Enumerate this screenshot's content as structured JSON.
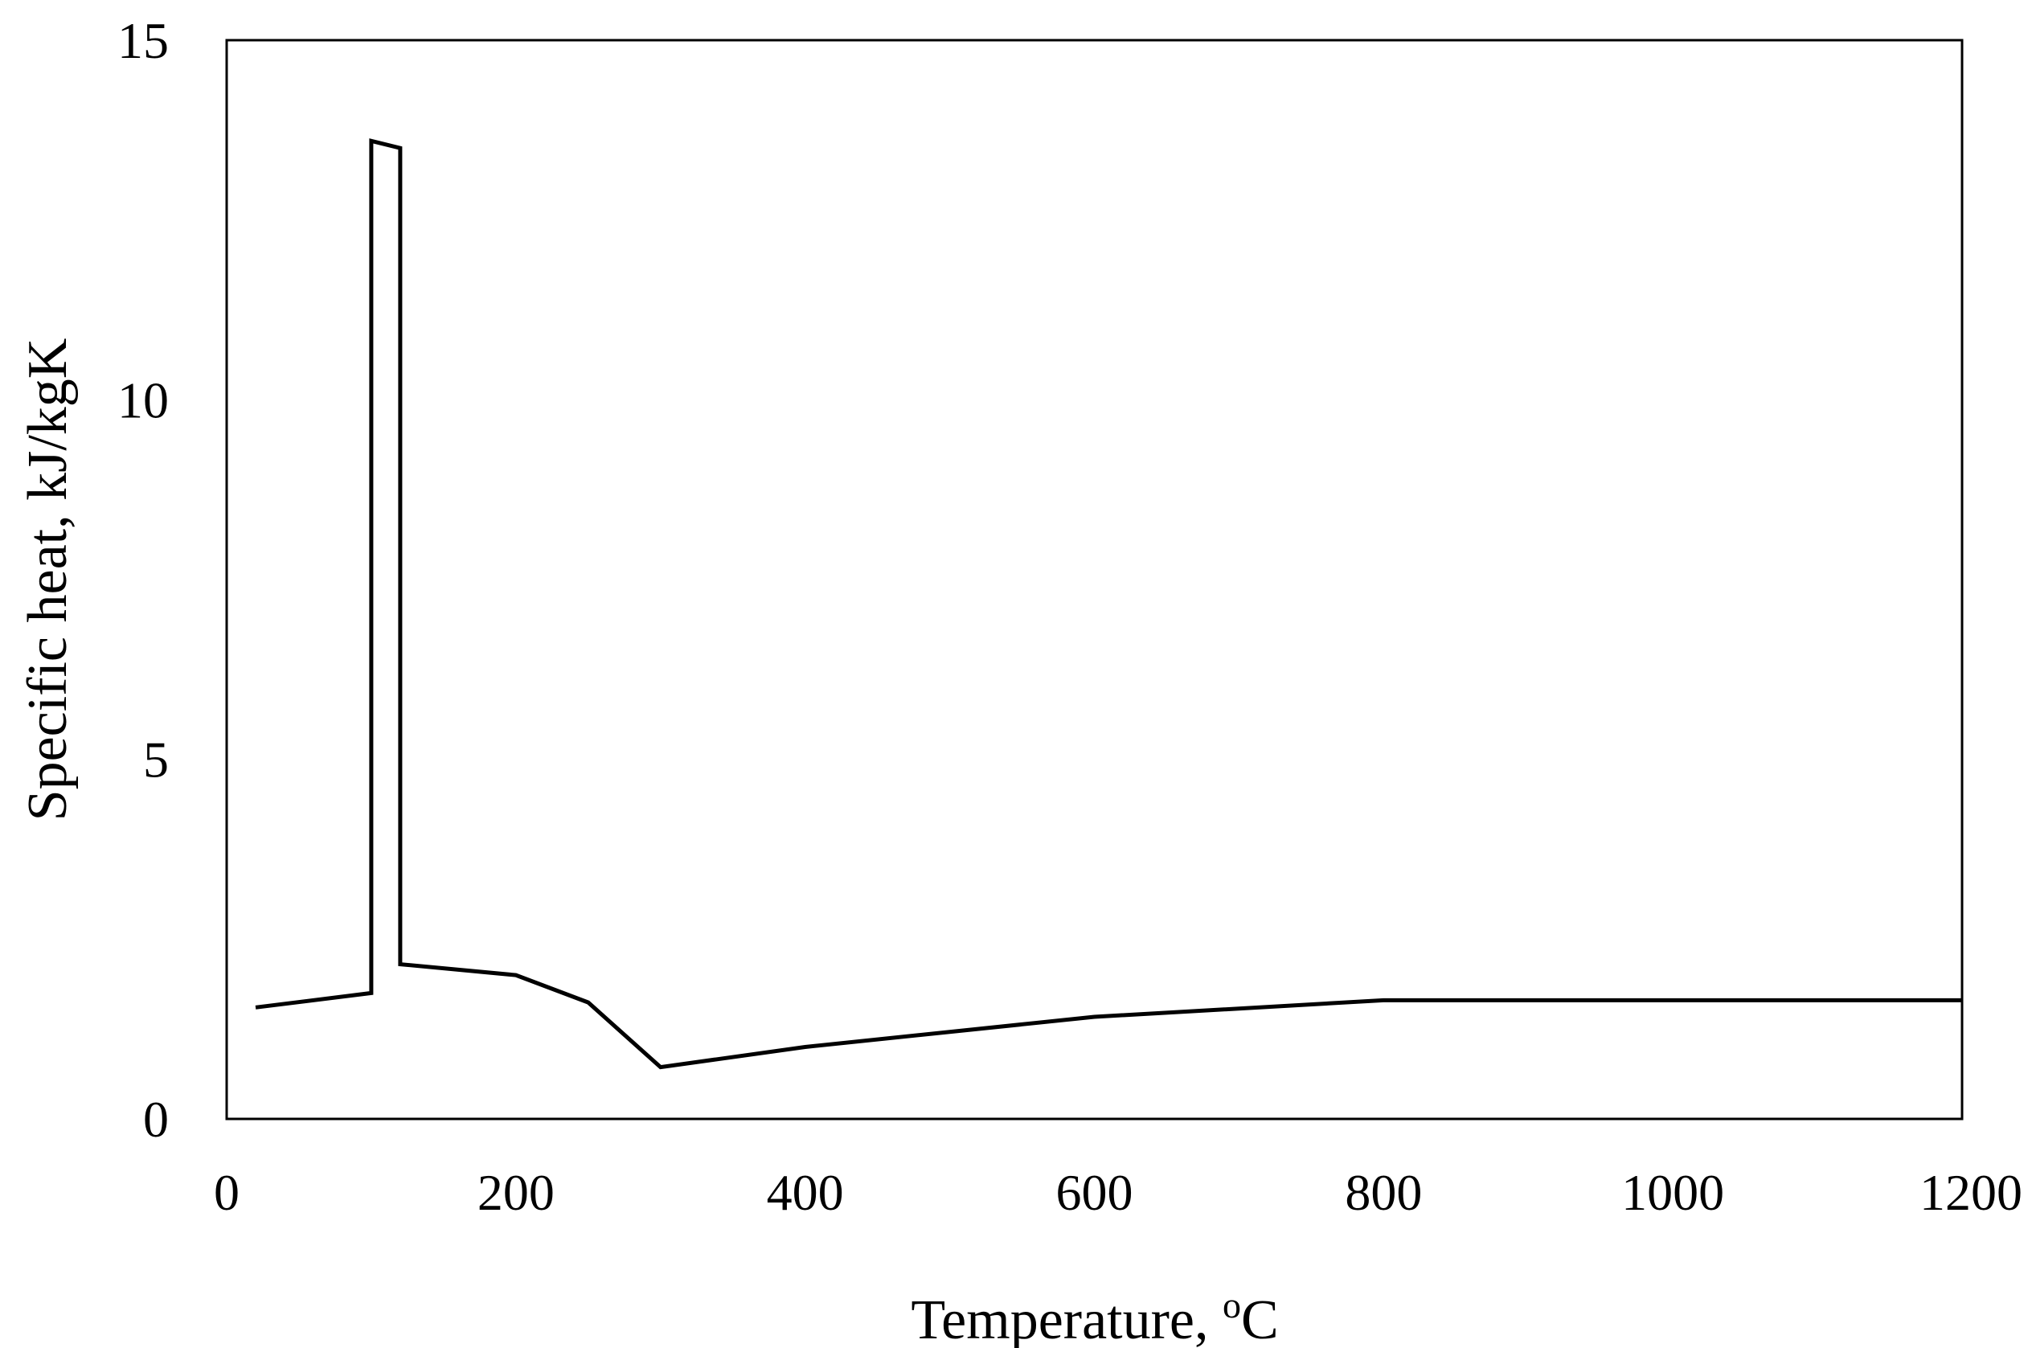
{
  "chart_data": {
    "type": "line",
    "title": "",
    "xlabel_text": "Temperature, ",
    "xlabel_unit_sup": "o",
    "xlabel_unit": "C",
    "ylabel": "Specific heat, kJ/kgK",
    "xlim": [
      0,
      1200
    ],
    "ylim": [
      0,
      15
    ],
    "xticks": [
      0,
      200,
      400,
      600,
      800,
      1000,
      1200
    ],
    "yticks": [
      0,
      5,
      10,
      15
    ],
    "grid": false,
    "legend": "none",
    "line_color": "#000000",
    "series": [
      {
        "x": [
          20,
          100,
          100,
          120,
          120,
          200,
          250,
          300,
          400,
          600,
          800,
          1200
        ],
        "y": [
          1.55,
          1.75,
          13.6,
          13.5,
          2.15,
          2.0,
          1.62,
          0.72,
          1.0,
          1.42,
          1.65,
          1.65
        ]
      }
    ]
  }
}
